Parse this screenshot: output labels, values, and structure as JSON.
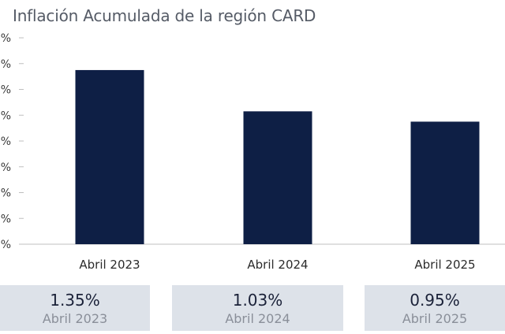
{
  "title": "Inflación Acumulada de la región CARD",
  "colors": {
    "bar": "#0e1f45",
    "axis": "#bfbfbf",
    "card_bg": "#dde2e9"
  },
  "chart_data": {
    "type": "bar",
    "title": "Inflación Acumulada de la región CARD",
    "categories": [
      "Abril 2023",
      "Abril 2024",
      "Abril 2025"
    ],
    "values": [
      1.35,
      1.03,
      0.95
    ],
    "y_ticks": [
      "%",
      "%",
      "%",
      "%",
      "%",
      "%",
      "%",
      "%",
      "%"
    ],
    "ylim": [
      0,
      1.6
    ],
    "grid": false,
    "legend": "none"
  },
  "cards": [
    {
      "value": "1.35%",
      "label": "Abril 2023"
    },
    {
      "value": "1.03%",
      "label": "Abril 2024"
    },
    {
      "value": "0.95%",
      "label": "Abril 2025"
    }
  ]
}
